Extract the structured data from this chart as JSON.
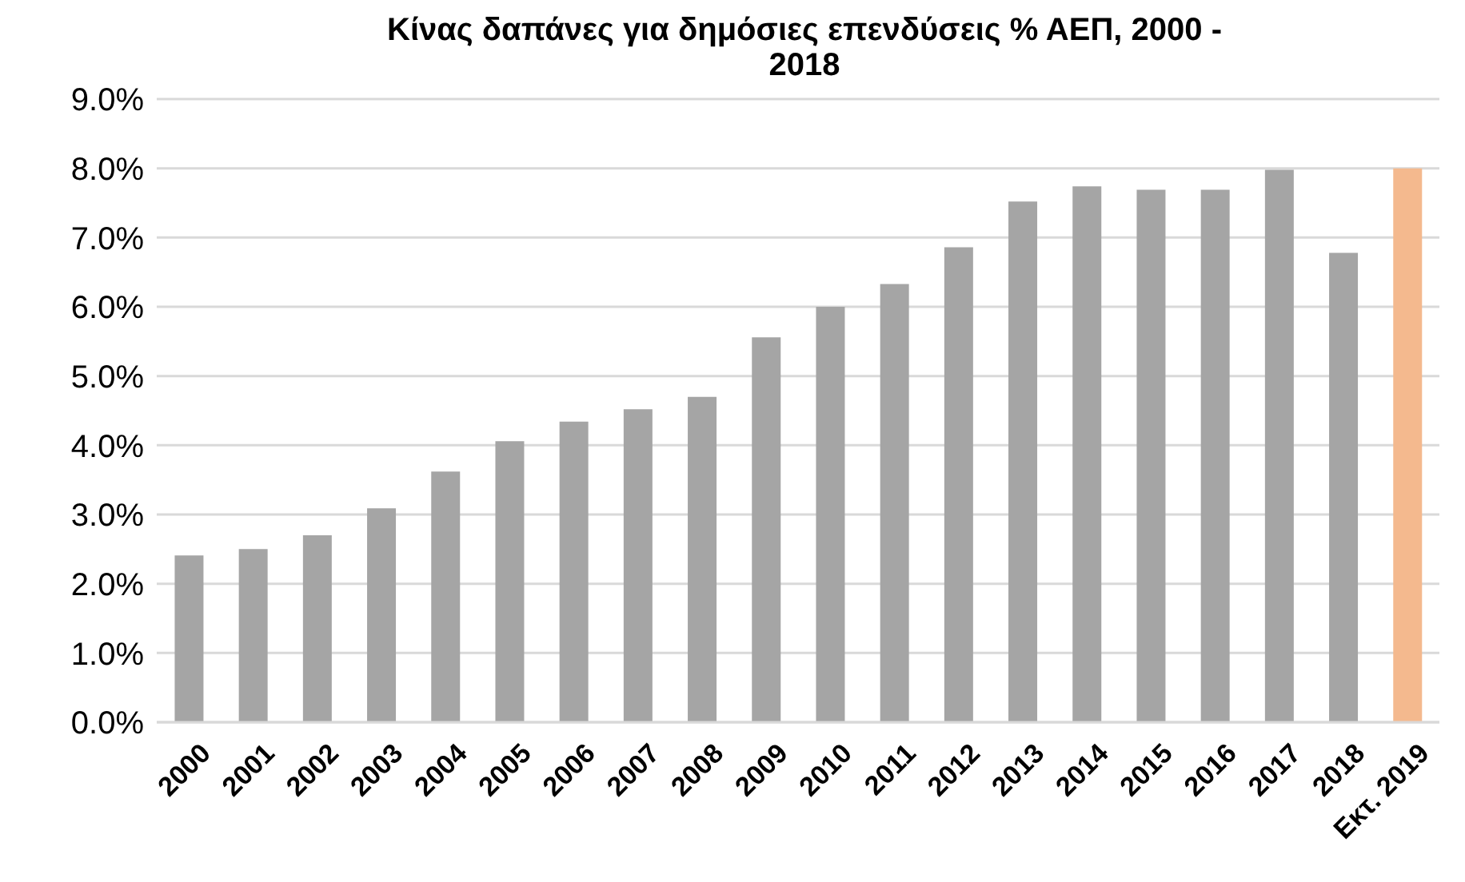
{
  "chart_data": {
    "type": "bar",
    "title": "Κίνας δαπάνες για δημόσιες επενδύσεις % ΑΕΠ, 2000 - 2018",
    "categories": [
      "2000",
      "2001",
      "2002",
      "2003",
      "2004",
      "2005",
      "2006",
      "2007",
      "2008",
      "2009",
      "2010",
      "2011",
      "2012",
      "2013",
      "2014",
      "2015",
      "2016",
      "2017",
      "2018",
      "Εκτ. 2019"
    ],
    "values": [
      2.41,
      2.5,
      2.7,
      3.09,
      3.62,
      4.06,
      4.34,
      4.52,
      4.7,
      5.56,
      6.0,
      6.33,
      6.86,
      7.52,
      7.74,
      7.69,
      7.69,
      7.98,
      6.78,
      8.0
    ],
    "colors": [
      "#a5a5a5",
      "#a5a5a5",
      "#a5a5a5",
      "#a5a5a5",
      "#a5a5a5",
      "#a5a5a5",
      "#a5a5a5",
      "#a5a5a5",
      "#a5a5a5",
      "#a5a5a5",
      "#a5a5a5",
      "#a5a5a5",
      "#a5a5a5",
      "#a5a5a5",
      "#a5a5a5",
      "#a5a5a5",
      "#a5a5a5",
      "#a5a5a5",
      "#a5a5a5",
      "#f4b98e"
    ],
    "ylim": [
      0,
      9
    ],
    "yticks": [
      {
        "value": 0,
        "label": "0.0%"
      },
      {
        "value": 1,
        "label": "1.0%"
      },
      {
        "value": 2,
        "label": "2.0%"
      },
      {
        "value": 3,
        "label": "3.0%"
      },
      {
        "value": 4,
        "label": "4.0%"
      },
      {
        "value": 5,
        "label": "5.0%"
      },
      {
        "value": 6,
        "label": "6.0%"
      },
      {
        "value": 7,
        "label": "7.0%"
      },
      {
        "value": 8,
        "label": "8.0%"
      },
      {
        "value": 9,
        "label": "9.0%"
      }
    ],
    "grid": "y",
    "legend": false
  }
}
